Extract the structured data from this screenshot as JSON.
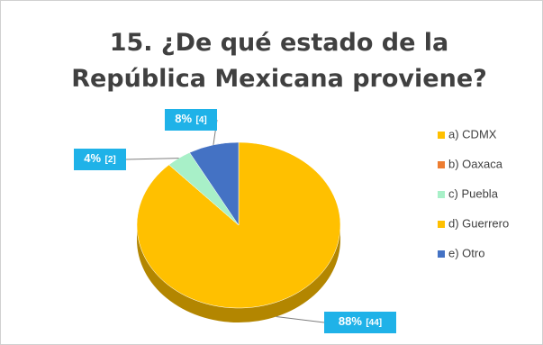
{
  "chart_data": {
    "type": "pie",
    "title": "15. ¿De qué estado de la República Mexicana proviene?",
    "categories": [
      "a) CDMX",
      "b) Oaxaca",
      "c) Puebla",
      "d) Guerrero",
      "e) Otro"
    ],
    "values": [
      88,
      0,
      4,
      0,
      8
    ],
    "value_labels": [
      "88%",
      null,
      "4%",
      null,
      "8%"
    ],
    "counts": [
      44,
      null,
      2,
      null,
      4
    ],
    "count_labels": [
      "[44]",
      null,
      "[2]",
      null,
      "[4]"
    ],
    "colors": [
      "#ffc000",
      "#ed7d31",
      "#a8f0c8",
      "#ffc000",
      "#4472c4"
    ],
    "legend": "right"
  }
}
